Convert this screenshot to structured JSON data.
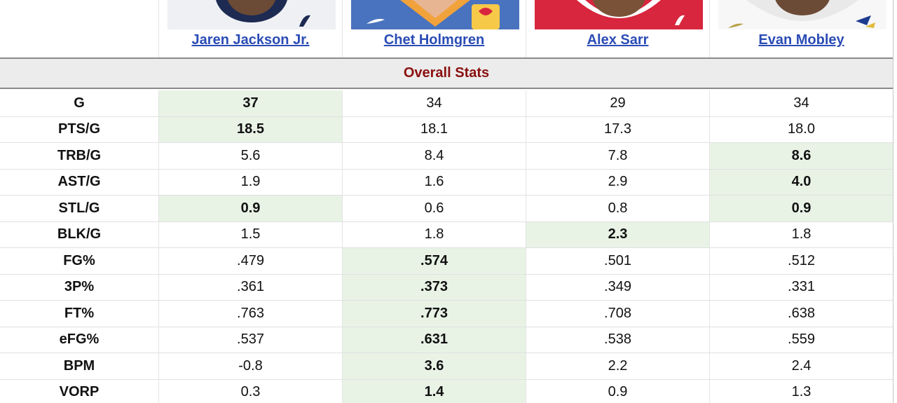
{
  "players": [
    {
      "name": "Jaren Jackson Jr.",
      "jersey_color": "#1d2a52",
      "bg": "#eef0f3"
    },
    {
      "name": "Chet Holmgren",
      "jersey_color": "#2c6bd6",
      "bg": "#f2a23b"
    },
    {
      "name": "Alex Sarr",
      "jersey_color": "#d7263d",
      "bg": "#ffffff"
    },
    {
      "name": "Evan Mobley",
      "jersey_color": "#f4f4f4",
      "bg": "#f7f7f7"
    }
  ],
  "section_title": "Overall Stats",
  "colors": {
    "link": "#2b4cb5",
    "section_title": "#8b1010",
    "best_bg": "#e8f3e6"
  },
  "rows": [
    {
      "label": "G",
      "values": [
        "37",
        "34",
        "29",
        "34"
      ],
      "best": [
        0
      ]
    },
    {
      "label": "PTS/G",
      "values": [
        "18.5",
        "18.1",
        "17.3",
        "18.0"
      ],
      "best": [
        0
      ]
    },
    {
      "label": "TRB/G",
      "values": [
        "5.6",
        "8.4",
        "7.8",
        "8.6"
      ],
      "best": [
        3
      ]
    },
    {
      "label": "AST/G",
      "values": [
        "1.9",
        "1.6",
        "2.9",
        "4.0"
      ],
      "best": [
        3
      ]
    },
    {
      "label": "STL/G",
      "values": [
        "0.9",
        "0.6",
        "0.8",
        "0.9"
      ],
      "best": [
        0,
        3
      ]
    },
    {
      "label": "BLK/G",
      "values": [
        "1.5",
        "1.8",
        "2.3",
        "1.8"
      ],
      "best": [
        2
      ]
    },
    {
      "label": "FG%",
      "values": [
        ".479",
        ".574",
        ".501",
        ".512"
      ],
      "best": [
        1
      ]
    },
    {
      "label": "3P%",
      "values": [
        ".361",
        ".373",
        ".349",
        ".331"
      ],
      "best": [
        1
      ]
    },
    {
      "label": "FT%",
      "values": [
        ".763",
        ".773",
        ".708",
        ".638"
      ],
      "best": [
        1
      ]
    },
    {
      "label": "eFG%",
      "values": [
        ".537",
        ".631",
        ".538",
        ".559"
      ],
      "best": [
        1
      ]
    },
    {
      "label": "BPM",
      "values": [
        "-0.8",
        "3.6",
        "2.2",
        "2.4"
      ],
      "best": [
        1
      ]
    },
    {
      "label": "VORP",
      "values": [
        "0.3",
        "1.4",
        "0.9",
        "1.3"
      ],
      "best": [
        1
      ]
    }
  ]
}
